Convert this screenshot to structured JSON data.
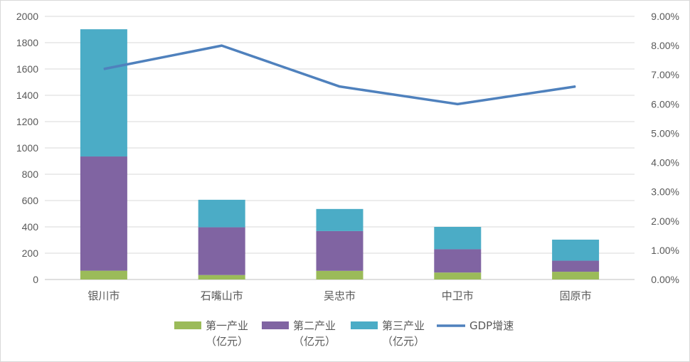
{
  "chart_data": {
    "type": "bar",
    "stacked": true,
    "categories": [
      "银川市",
      "石嘴山市",
      "吴忠市",
      "中卫市",
      "固原市"
    ],
    "series": [
      {
        "name": "第一产业（亿元）",
        "label_lines": [
          "第一产业",
          "（亿元）"
        ],
        "type": "bar",
        "axis": "left",
        "color": "#9bbb59",
        "values": [
          67,
          34,
          66,
          53,
          59
        ]
      },
      {
        "name": "第二产业（亿元）",
        "label_lines": [
          "第二产业",
          "（亿元）"
        ],
        "type": "bar",
        "axis": "left",
        "color": "#8064a2",
        "values": [
          868,
          363,
          302,
          177,
          84
        ]
      },
      {
        "name": "第三产业（亿元）",
        "label_lines": [
          "第三产业",
          "（亿元）"
        ],
        "type": "bar",
        "axis": "left",
        "color": "#4bacc6",
        "values": [
          967,
          209,
          168,
          170,
          160
        ]
      },
      {
        "name": "GDP增速",
        "label_lines": [
          "GDP增速"
        ],
        "type": "line",
        "axis": "right",
        "color": "#4f81bd",
        "values": [
          0.072,
          0.08,
          0.066,
          0.06,
          0.066
        ]
      }
    ],
    "y_left": {
      "min": 0,
      "max": 2000,
      "step": 200
    },
    "y_right": {
      "min": 0,
      "max": 0.09,
      "step": 0.01,
      "format": "percent2"
    },
    "grid": true,
    "legend": "bottom"
  }
}
